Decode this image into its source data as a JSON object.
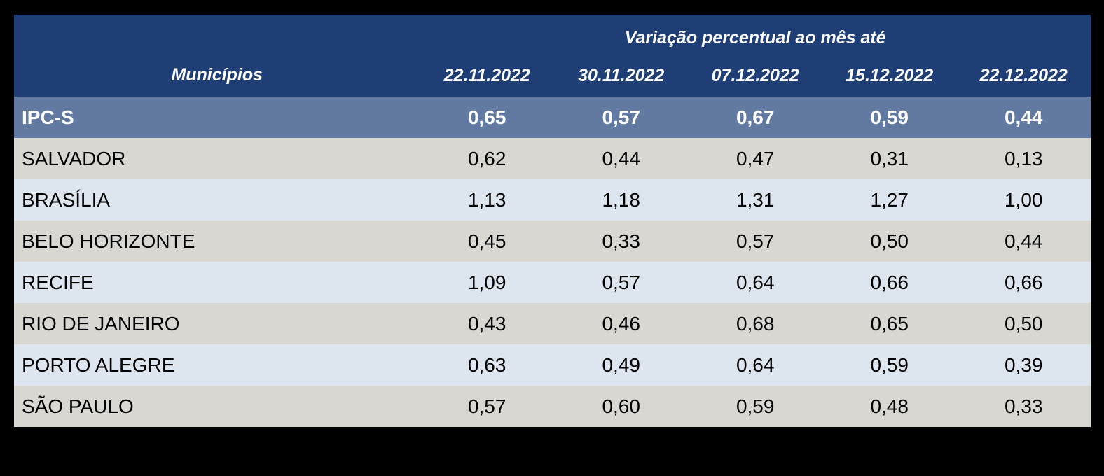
{
  "page": {
    "background": "#000000"
  },
  "table": {
    "title": "Variação percentual ao mês até",
    "municipios_header": "Municípios",
    "date_headers": [
      "22.11.2022",
      "30.11.2022",
      "07.12.2022",
      "15.12.2022",
      "22.12.2022"
    ],
    "colors": {
      "page_bg": "#000000",
      "header_bg": "#1F3E76",
      "header_text": "#FFFFFF",
      "ipcs_row_bg": "#6279A1",
      "ipcs_row_text": "#FFFFFF",
      "row_grey_bg": "#D8D7D2",
      "row_blue_bg": "#DDE5EF",
      "row_text": "#000000"
    },
    "rows": [
      {
        "name": "IPC-S",
        "values": [
          "0,65",
          "0,57",
          "0,67",
          "0,59",
          "0,44"
        ]
      },
      {
        "name": "SALVADOR",
        "values": [
          "0,62",
          "0,44",
          "0,47",
          "0,31",
          "0,13"
        ]
      },
      {
        "name": "BRASÍLIA",
        "values": [
          "1,13",
          "1,18",
          "1,31",
          "1,27",
          "1,00"
        ]
      },
      {
        "name": "BELO HORIZONTE",
        "values": [
          "0,45",
          "0,33",
          "0,57",
          "0,50",
          "0,44"
        ]
      },
      {
        "name": "RECIFE",
        "values": [
          "1,09",
          "0,57",
          "0,64",
          "0,66",
          "0,66"
        ]
      },
      {
        "name": "RIO DE JANEIRO",
        "values": [
          "0,43",
          "0,46",
          "0,68",
          "0,65",
          "0,50"
        ]
      },
      {
        "name": "PORTO ALEGRE",
        "values": [
          "0,63",
          "0,49",
          "0,64",
          "0,59",
          "0,39"
        ]
      },
      {
        "name": "SÃO PAULO",
        "values": [
          "0,57",
          "0,60",
          "0,59",
          "0,48",
          "0,33"
        ]
      }
    ]
  },
  "chart_data": {
    "type": "table",
    "title": "Variação percentual ao mês até",
    "row_header_label": "Municípios",
    "columns": [
      "22.11.2022",
      "30.11.2022",
      "07.12.2022",
      "15.12.2022",
      "22.12.2022"
    ],
    "rows": [
      {
        "name": "IPC-S",
        "values": [
          0.65,
          0.57,
          0.67,
          0.59,
          0.44
        ],
        "highlighted": true
      },
      {
        "name": "SALVADOR",
        "values": [
          0.62,
          0.44,
          0.47,
          0.31,
          0.13
        ],
        "highlighted": false
      },
      {
        "name": "BRASÍLIA",
        "values": [
          1.13,
          1.18,
          1.31,
          1.27,
          1.0
        ],
        "highlighted": false
      },
      {
        "name": "BELO HORIZONTE",
        "values": [
          0.45,
          0.33,
          0.57,
          0.5,
          0.44
        ],
        "highlighted": false
      },
      {
        "name": "RECIFE",
        "values": [
          1.09,
          0.57,
          0.64,
          0.66,
          0.66
        ],
        "highlighted": false
      },
      {
        "name": "RIO DE JANEIRO",
        "values": [
          0.43,
          0.46,
          0.68,
          0.65,
          0.5
        ],
        "highlighted": false
      },
      {
        "name": "PORTO ALEGRE",
        "values": [
          0.63,
          0.49,
          0.64,
          0.59,
          0.39
        ],
        "highlighted": false
      },
      {
        "name": "SÃO PAULO",
        "values": [
          0.57,
          0.6,
          0.59,
          0.48,
          0.33
        ],
        "highlighted": false
      }
    ]
  }
}
